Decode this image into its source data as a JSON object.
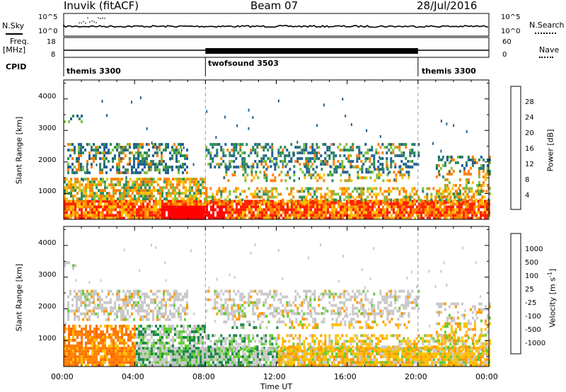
{
  "header": {
    "station": "Inuvik (fitACF)",
    "beam": "Beam 07",
    "date": "28/Jul/2016"
  },
  "summary": {
    "nsky_label": "N.Sky",
    "nsearch_label": "N.Search",
    "nsky_ticks": [
      "10^5",
      "10^0"
    ],
    "nsearch_ticks": [
      "10^5",
      "10^0"
    ],
    "freq_label_1": "Freq.",
    "freq_label_2": "[MHz]",
    "freq_ticks": [
      "18",
      "8"
    ],
    "nave_label": "Nave",
    "nave_ticks": [
      "60",
      "0"
    ],
    "cpid_label": "CPID",
    "cpid_segments": [
      {
        "label": "themis 3300",
        "start_hour": 0,
        "end_hour": 8
      },
      {
        "label": "twofsound 3503",
        "start_hour": 8,
        "end_hour": 20
      },
      {
        "label": "themis 3300",
        "start_hour": 20,
        "end_hour": 24
      }
    ]
  },
  "chart_data": [
    {
      "type": "heatmap",
      "name": "power",
      "ylabel": "Slant Range [km]",
      "y_ticks": [
        "1000",
        "2000",
        "3000",
        "4000"
      ],
      "ylim": [
        180,
        4600
      ],
      "colorbar_label": "Power [dB]",
      "colorbar_ticks": [
        "28",
        "24",
        "20",
        "16",
        "12",
        "8",
        "4"
      ],
      "colorbar_colors": [
        "#ff0000",
        "#ff4000",
        "#ff8000",
        "#ffbf00",
        "#7fbf3f",
        "#2e8b57",
        "#206090",
        "#0000ff"
      ],
      "vertical_markers_hours": [
        8,
        20
      ]
    },
    {
      "type": "heatmap",
      "name": "velocity",
      "ylabel": "Slant Range [km]",
      "y_ticks": [
        "1000",
        "2000",
        "3000",
        "4000"
      ],
      "ylim": [
        180,
        4600
      ],
      "colorbar_label": "Velocity  [m s",
      "colorbar_label_sup": "-1",
      "colorbar_label_end": "]",
      "colorbar_ticks": [
        "1000",
        "500",
        "100",
        "25",
        "-25",
        "-100",
        "-500",
        "-1000"
      ],
      "colorbar_colors": [
        "#1f3fa8",
        "#1e7bb0",
        "#1a8a4a",
        "#66cc33",
        "#c8c8c8",
        "#ff9900",
        "#ff6600",
        "#ff3300",
        "#ff0000"
      ],
      "vertical_markers_hours": [
        8,
        20
      ]
    }
  ],
  "x_axis": {
    "ticks": [
      "00:00",
      "04:00",
      "08:00",
      "12:00",
      "16:00",
      "20:00",
      "00:00"
    ],
    "label": "Time UT"
  }
}
